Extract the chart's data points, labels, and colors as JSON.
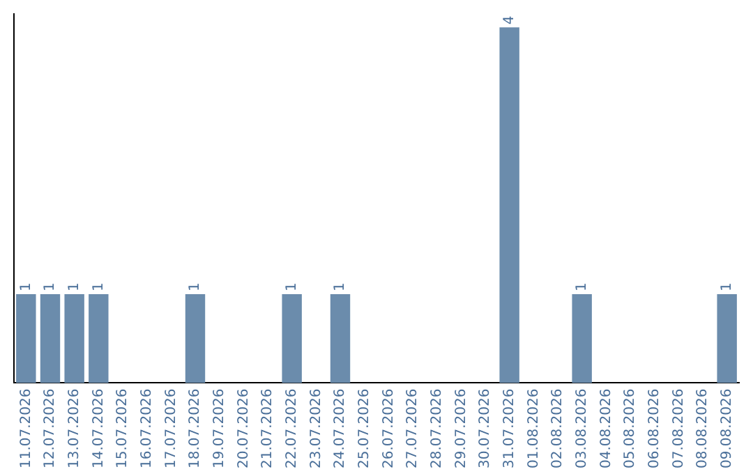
{
  "chart_data": {
    "type": "bar",
    "categories": [
      "11.07.2026",
      "12.07.2026",
      "13.07.2026",
      "14.07.2026",
      "15.07.2026",
      "16.07.2026",
      "17.07.2026",
      "18.07.2026",
      "19.07.2026",
      "20.07.2026",
      "21.07.2026",
      "22.07.2026",
      "23.07.2026",
      "24.07.2026",
      "25.07.2026",
      "26.07.2026",
      "27.07.2026",
      "28.07.2026",
      "29.07.2026",
      "30.07.2026",
      "31.07.2026",
      "01.08.2026",
      "02.08.2026",
      "03.08.2026",
      "04.08.2026",
      "05.08.2026",
      "06.08.2026",
      "07.08.2026",
      "08.08.2026",
      "09.08.2026"
    ],
    "values": [
      1,
      1,
      1,
      1,
      0,
      0,
      0,
      1,
      0,
      0,
      0,
      1,
      0,
      1,
      0,
      0,
      0,
      0,
      0,
      0,
      4,
      0,
      0,
      1,
      0,
      0,
      0,
      0,
      0,
      1
    ],
    "value_labels": [
      "1",
      "1",
      "1",
      "1",
      null,
      null,
      null,
      "1",
      null,
      null,
      null,
      "1",
      null,
      "1",
      null,
      null,
      null,
      null,
      null,
      null,
      "4",
      null,
      null,
      "1",
      null,
      null,
      null,
      null,
      null,
      "1"
    ],
    "color": "#6b8cac",
    "ylim": [
      0,
      4.15
    ],
    "tick_labels": "x",
    "grid": false,
    "legend": false
  }
}
